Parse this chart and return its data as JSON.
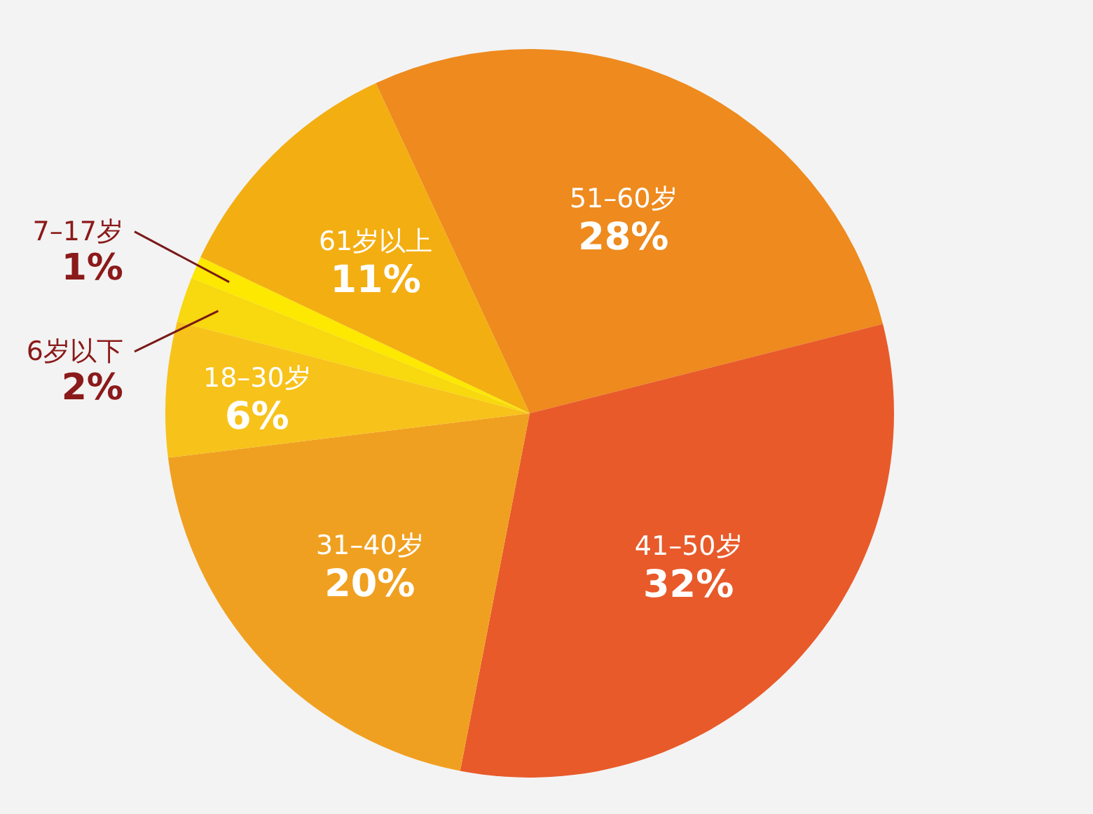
{
  "chart_data": {
    "type": "pie",
    "categories": [
      "51–60岁",
      "41–50岁",
      "31–40岁",
      "18–30岁",
      "6岁以下",
      "7–17岁",
      "61岁以上"
    ],
    "values": [
      28,
      32,
      20,
      6,
      2,
      1,
      11
    ],
    "value_labels": [
      "28%",
      "32%",
      "20%",
      "6%",
      "2%",
      "1%",
      "11%"
    ],
    "colors": [
      "#ee8a1e",
      "#e85a2a",
      "#f0a020",
      "#f7c21a",
      "#f8d80e",
      "#fce800",
      "#f3ae12"
    ],
    "legend": false
  }
}
